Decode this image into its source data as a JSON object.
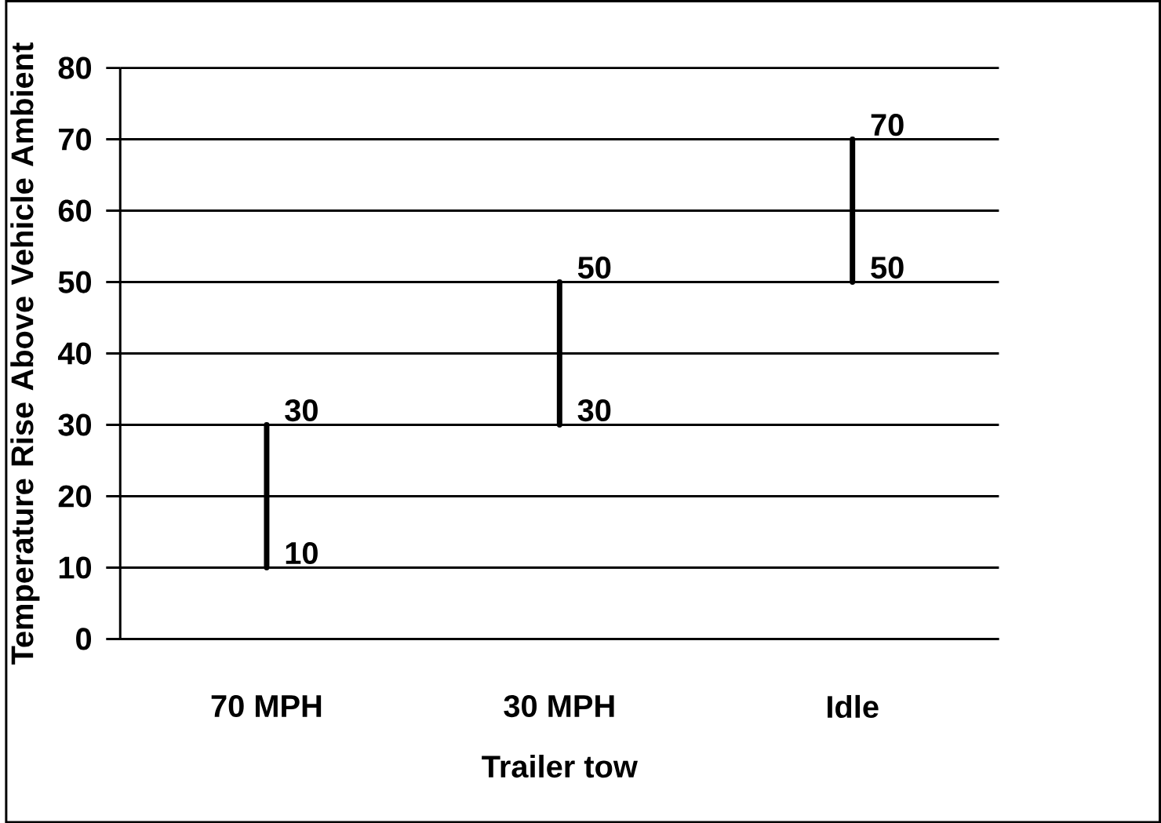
{
  "chart_data": {
    "type": "bar",
    "categories": [
      "70 MPH",
      "30 MPH",
      "Idle"
    ],
    "base": [
      10,
      30,
      50
    ],
    "values": [
      20,
      20,
      20
    ],
    "color": "#000000",
    "xlabel": "Trailer tow",
    "ylabel": "Temperature Rise Above Vehicle Ambient",
    "ylim": [
      0,
      80
    ],
    "yticks": [
      0,
      10,
      20,
      30,
      40,
      50,
      60,
      70,
      80
    ],
    "grid": "y",
    "annotations": [
      {
        "text": "30",
        "x": "70 MPH",
        "y": 30
      },
      {
        "text": "10",
        "x": "70 MPH",
        "y": 10
      },
      {
        "text": "50",
        "x": "30 MPH",
        "y": 50
      },
      {
        "text": "30",
        "x": "30 MPH",
        "y": 30
      },
      {
        "text": "70",
        "x": "Idle",
        "y": 70
      },
      {
        "text": "50",
        "x": "Idle",
        "y": 50
      }
    ]
  }
}
